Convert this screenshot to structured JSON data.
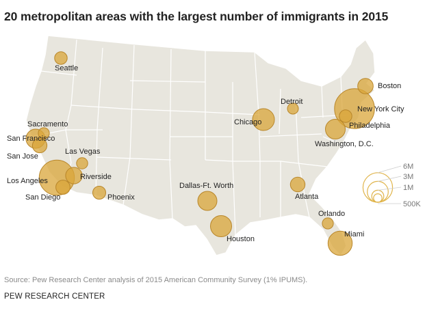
{
  "title": "20 metropolitan areas with the largest number of immigrants in 2015",
  "source": "Source: Pew Research Center analysis of 2015 American Community Survey (1% IPUMS).",
  "organization": "PEW RESEARCH CENTER",
  "colors": {
    "bubble_fill": "#d9a63a",
    "bubble_stroke": "#b8862a",
    "land": "#e8e6de",
    "border": "#ffffff",
    "legend_stroke": "#e0b44a"
  },
  "legend": {
    "sizes": [
      {
        "label": "6M",
        "value": 6000000
      },
      {
        "label": "3M",
        "value": 3000000
      },
      {
        "label": "1M",
        "value": 1000000
      },
      {
        "label": "500K",
        "value": 500000
      }
    ]
  },
  "cities": [
    {
      "name": "New York City",
      "immigrants": 5700000
    },
    {
      "name": "Los Angeles",
      "immigrants": 4400000
    },
    {
      "name": "Miami",
      "immigrants": 2100000
    },
    {
      "name": "Chicago",
      "immigrants": 1700000
    },
    {
      "name": "San Francisco",
      "immigrants": 1300000
    },
    {
      "name": "Houston",
      "immigrants": 1600000
    },
    {
      "name": "Dallas-Ft. Worth",
      "immigrants": 1300000
    },
    {
      "name": "Washington, D.C.",
      "immigrants": 1400000
    },
    {
      "name": "Riverside",
      "immigrants": 970000
    },
    {
      "name": "Boston",
      "immigrants": 850000
    },
    {
      "name": "San Jose",
      "immigrants": 750000
    },
    {
      "name": "Philadelphia",
      "immigrants": 570000
    },
    {
      "name": "Seattle",
      "immigrants": 570000
    },
    {
      "name": "San Diego",
      "immigrants": 720000
    },
    {
      "name": "Atlanta",
      "immigrants": 760000
    },
    {
      "name": "Phoenix",
      "immigrants": 600000
    },
    {
      "name": "Orlando",
      "immigrants": 440000
    },
    {
      "name": "Las Vegas",
      "immigrants": 450000
    },
    {
      "name": "Sacramento",
      "immigrants": 440000
    },
    {
      "name": "Detroit",
      "immigrants": 430000
    }
  ]
}
